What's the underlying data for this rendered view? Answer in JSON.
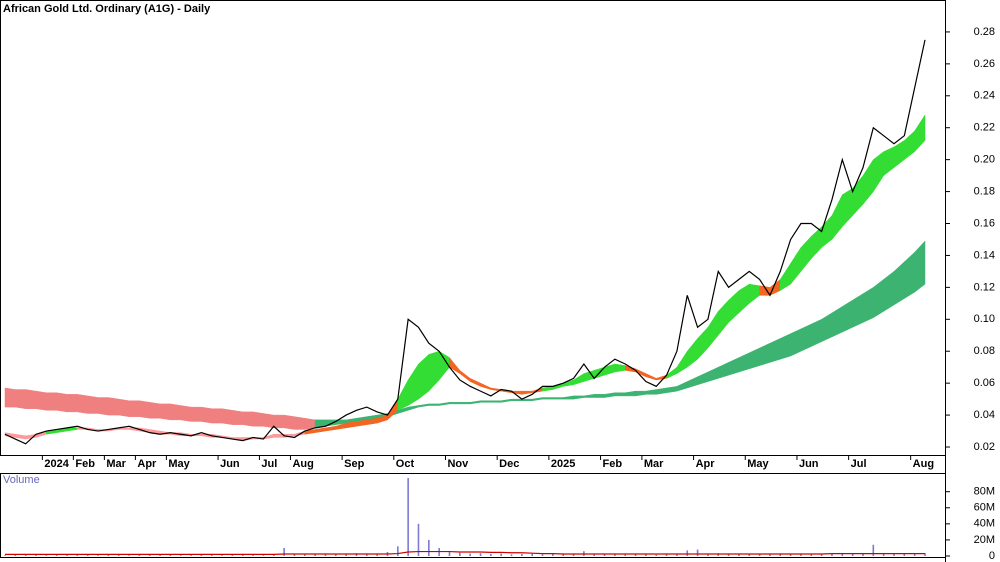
{
  "chart_data": [
    {
      "type": "line",
      "title": "African Gold Ltd. Ordinary (A1G) - Daily",
      "categories": [
        null,
        null,
        null,
        null,
        "2024",
        null,
        null,
        "Feb",
        null,
        null,
        "Mar",
        null,
        null,
        "Apr",
        null,
        null,
        "May",
        null,
        null,
        null,
        null,
        "Jun",
        null,
        null,
        null,
        "Jul",
        null,
        null,
        "Aug",
        null,
        null,
        null,
        null,
        "Sep",
        null,
        null,
        null,
        null,
        "Oct",
        null,
        null,
        null,
        null,
        "Nov",
        null,
        null,
        null,
        null,
        "Dec",
        null,
        null,
        null,
        null,
        "2025",
        null,
        null,
        null,
        null,
        "Feb",
        null,
        null,
        null,
        "Mar",
        null,
        null,
        null,
        null,
        "Apr",
        null,
        null,
        null,
        null,
        "May",
        null,
        null,
        null,
        null,
        "Jun",
        null,
        null,
        null,
        null,
        "Jul",
        null,
        null,
        null,
        null,
        null,
        "Aug",
        null
      ],
      "series": [
        {
          "color": "#000000",
          "values": [
            0.028,
            0.025,
            0.022,
            0.028,
            0.03,
            0.031,
            0.032,
            0.033,
            0.031,
            0.03,
            0.031,
            0.032,
            0.033,
            0.031,
            0.029,
            0.028,
            0.029,
            0.028,
            0.027,
            0.029,
            0.027,
            0.026,
            0.025,
            0.024,
            0.026,
            0.025,
            0.033,
            0.027,
            0.026,
            0.03,
            0.032,
            0.033,
            0.036,
            0.04,
            0.043,
            0.045,
            0.042,
            0.04,
            0.05,
            0.1,
            0.095,
            0.085,
            0.08,
            0.07,
            0.062,
            0.058,
            0.055,
            0.052,
            0.056,
            0.055,
            0.05,
            0.053,
            0.058,
            0.058,
            0.06,
            0.063,
            0.072,
            0.063,
            0.07,
            0.075,
            0.072,
            0.068,
            0.061,
            0.058,
            0.065,
            0.08,
            0.115,
            0.095,
            0.1,
            0.13,
            0.12,
            0.125,
            0.13,
            0.125,
            0.115,
            0.13,
            0.15,
            0.16,
            0.16,
            0.155,
            0.175,
            0.2,
            0.18,
            0.195,
            0.22,
            0.215,
            0.21,
            0.215,
            0.245,
            0.275
          ]
        }
      ],
      "bands": [
        {
          "upper": [
            0.057,
            0.056,
            0.056,
            0.055,
            0.054,
            0.054,
            0.053,
            0.053,
            0.052,
            0.051,
            0.051,
            0.05,
            0.049,
            0.049,
            0.048,
            0.047,
            0.047,
            0.046,
            0.045,
            0.045,
            0.044,
            0.044,
            0.043,
            0.042,
            0.042,
            0.041,
            0.04,
            0.04,
            0.039,
            0.038,
            0.037,
            0.037,
            0.037,
            0.037,
            0.038,
            0.039,
            0.04,
            0.041,
            0.043,
            0.045,
            0.046,
            0.047,
            0.047,
            0.048,
            0.048,
            0.048,
            0.049,
            0.049,
            0.049,
            0.05,
            0.05,
            0.05,
            0.051,
            0.051,
            0.051,
            0.052,
            0.052,
            0.053,
            0.053,
            0.054,
            0.054,
            0.055,
            0.055,
            0.056,
            0.057,
            0.058,
            0.061,
            0.064,
            0.067,
            0.07,
            0.073,
            0.076,
            0.079,
            0.082,
            0.085,
            0.088,
            0.091,
            0.094,
            0.097,
            0.1,
            0.104,
            0.108,
            0.112,
            0.116,
            0.12,
            0.125,
            0.13,
            0.136,
            0.142,
            0.149
          ],
          "lower": [
            0.045,
            0.045,
            0.044,
            0.044,
            0.043,
            0.043,
            0.042,
            0.042,
            0.041,
            0.041,
            0.04,
            0.04,
            0.039,
            0.039,
            0.038,
            0.038,
            0.037,
            0.037,
            0.036,
            0.036,
            0.035,
            0.035,
            0.034,
            0.034,
            0.033,
            0.033,
            0.032,
            0.032,
            0.031,
            0.031,
            0.032,
            0.033,
            0.034,
            0.035,
            0.036,
            0.037,
            0.038,
            0.039,
            0.041,
            0.043,
            0.045,
            0.046,
            0.046,
            0.047,
            0.047,
            0.047,
            0.048,
            0.048,
            0.048,
            0.049,
            0.049,
            0.049,
            0.05,
            0.05,
            0.05,
            0.05,
            0.051,
            0.051,
            0.051,
            0.052,
            0.052,
            0.052,
            0.053,
            0.053,
            0.054,
            0.055,
            0.057,
            0.059,
            0.061,
            0.063,
            0.065,
            0.067,
            0.069,
            0.071,
            0.073,
            0.075,
            0.077,
            0.08,
            0.083,
            0.086,
            0.089,
            0.092,
            0.095,
            0.098,
            0.101,
            0.105,
            0.109,
            0.113,
            0.117,
            0.122
          ],
          "colors": [
            "#f08080",
            "#f08080",
            "#f08080",
            "#f08080",
            "#f08080",
            "#f08080",
            "#f08080",
            "#f08080",
            "#f08080",
            "#f08080",
            "#f08080",
            "#f08080",
            "#f08080",
            "#f08080",
            "#f08080",
            "#f08080",
            "#f08080",
            "#f08080",
            "#f08080",
            "#f08080",
            "#f08080",
            "#f08080",
            "#f08080",
            "#f08080",
            "#f08080",
            "#f08080",
            "#f08080",
            "#f08080",
            "#f08080",
            "#f08080",
            "#3cb371",
            "#3cb371",
            "#3cb371",
            "#3cb371",
            "#3cb371",
            "#3cb371",
            "#3cb371",
            "#3cb371",
            "#3cb371",
            "#3cb371",
            "#3cb371",
            "#3cb371",
            "#3cb371",
            "#3cb371",
            "#3cb371",
            "#3cb371",
            "#3cb371",
            "#3cb371",
            "#3cb371",
            "#3cb371",
            "#3cb371",
            "#3cb371",
            "#3cb371",
            "#3cb371",
            "#3cb371",
            "#3cb371",
            "#3cb371",
            "#3cb371",
            "#3cb371",
            "#3cb371",
            "#3cb371",
            "#3cb371",
            "#3cb371",
            "#3cb371",
            "#3cb371",
            "#3cb371",
            "#3cb371",
            "#3cb371",
            "#3cb371",
            "#3cb371",
            "#3cb371",
            "#3cb371",
            "#3cb371",
            "#3cb371",
            "#3cb371",
            "#3cb371",
            "#3cb371",
            "#3cb371",
            "#3cb371",
            "#3cb371",
            "#3cb371",
            "#3cb371",
            "#3cb371",
            "#3cb371",
            "#3cb371",
            "#3cb371",
            "#3cb371",
            "#3cb371",
            "#3cb371",
            "#3cb371"
          ]
        },
        {
          "upper": [
            0.029,
            0.028,
            0.027,
            0.028,
            0.03,
            0.031,
            0.032,
            0.032,
            0.032,
            0.031,
            0.031,
            0.032,
            0.032,
            0.032,
            0.031,
            0.03,
            0.029,
            0.029,
            0.028,
            0.028,
            0.028,
            0.027,
            0.026,
            0.026,
            0.026,
            0.026,
            0.028,
            0.028,
            0.028,
            0.03,
            0.031,
            0.032,
            0.033,
            0.035,
            0.036,
            0.037,
            0.038,
            0.04,
            0.05,
            0.062,
            0.072,
            0.078,
            0.08,
            0.076,
            0.068,
            0.063,
            0.06,
            0.057,
            0.056,
            0.055,
            0.055,
            0.055,
            0.057,
            0.058,
            0.06,
            0.062,
            0.066,
            0.068,
            0.07,
            0.072,
            0.071,
            0.069,
            0.066,
            0.063,
            0.065,
            0.07,
            0.08,
            0.088,
            0.095,
            0.105,
            0.112,
            0.118,
            0.122,
            0.121,
            0.12,
            0.125,
            0.135,
            0.145,
            0.152,
            0.158,
            0.165,
            0.178,
            0.182,
            0.19,
            0.2,
            0.205,
            0.208,
            0.212,
            0.218,
            0.228
          ],
          "lower": [
            0.027,
            0.026,
            0.025,
            0.026,
            0.028,
            0.029,
            0.03,
            0.031,
            0.031,
            0.03,
            0.03,
            0.031,
            0.031,
            0.03,
            0.029,
            0.028,
            0.028,
            0.027,
            0.027,
            0.027,
            0.026,
            0.026,
            0.025,
            0.024,
            0.025,
            0.025,
            0.026,
            0.026,
            0.027,
            0.028,
            0.029,
            0.03,
            0.031,
            0.032,
            0.033,
            0.034,
            0.035,
            0.037,
            0.043,
            0.046,
            0.05,
            0.055,
            0.062,
            0.07,
            0.066,
            0.061,
            0.058,
            0.056,
            0.055,
            0.054,
            0.053,
            0.054,
            0.055,
            0.056,
            0.058,
            0.059,
            0.061,
            0.063,
            0.065,
            0.067,
            0.068,
            0.067,
            0.064,
            0.062,
            0.063,
            0.066,
            0.07,
            0.075,
            0.082,
            0.09,
            0.098,
            0.104,
            0.11,
            0.115,
            0.115,
            0.118,
            0.122,
            0.13,
            0.138,
            0.145,
            0.15,
            0.158,
            0.165,
            0.172,
            0.18,
            0.19,
            0.195,
            0.2,
            0.205,
            0.212
          ],
          "colors": [
            "#ff9999",
            "#ff9999",
            "#ff9999",
            "#ff9999",
            "#33dd33",
            "#33dd33",
            "#33dd33",
            "#ff9999",
            "#ff9999",
            "#ff9999",
            "#ff9999",
            "#ff9999",
            "#ff9999",
            "#ff9999",
            "#ff9999",
            "#ff9999",
            "#ff9999",
            "#ff9999",
            "#ff9999",
            "#ff9999",
            "#ff9999",
            "#ff9999",
            "#ff9999",
            "#ff9999",
            "#ff9999",
            "#ff9999",
            "#ff9999",
            "#ff9999",
            "#ff9999",
            "#f26522",
            "#f26522",
            "#f26522",
            "#f26522",
            "#f26522",
            "#f26522",
            "#f26522",
            "#f26522",
            "#f26522",
            "#33dd33",
            "#33dd33",
            "#33dd33",
            "#33dd33",
            "#33dd33",
            "#f26522",
            "#f26522",
            "#f26522",
            "#f26522",
            "#f26522",
            "#f26522",
            "#f26522",
            "#f26522",
            "#f26522",
            "#33dd33",
            "#33dd33",
            "#33dd33",
            "#33dd33",
            "#33dd33",
            "#33dd33",
            "#33dd33",
            "#33dd33",
            "#f26522",
            "#f26522",
            "#f26522",
            "#f26522",
            "#33dd33",
            "#33dd33",
            "#33dd33",
            "#33dd33",
            "#33dd33",
            "#33dd33",
            "#33dd33",
            "#33dd33",
            "#33dd33",
            "#f26522",
            "#f26522",
            "#33dd33",
            "#33dd33",
            "#33dd33",
            "#33dd33",
            "#33dd33",
            "#33dd33",
            "#33dd33",
            "#33dd33",
            "#33dd33",
            "#33dd33",
            "#33dd33",
            "#33dd33",
            "#33dd33",
            "#33dd33",
            "#33dd33"
          ]
        }
      ],
      "ylim": [
        0.015,
        0.3
      ],
      "yticks": [
        0.02,
        0.04,
        0.06,
        0.08,
        {
          "value": 0.1,
          "label": "0.10"
        },
        0.12,
        0.14,
        0.16,
        0.18,
        {
          "value": 0.2,
          "label": "0.20"
        },
        0.22,
        0.24,
        0.26,
        0.28
      ]
    },
    {
      "type": "bar",
      "title": "Volume",
      "series": [
        {
          "color": "#7b7bd6",
          "values": [
            1000000,
            1500000,
            1200000,
            2000000,
            1000000,
            1300000,
            1500000,
            2500000,
            1200000,
            1000000,
            1400000,
            1600000,
            1000000,
            2000000,
            1500000,
            1200000,
            1300000,
            1000000,
            1100000,
            1500000,
            1200000,
            1000000,
            1300000,
            1400000,
            1200000,
            1000000,
            1500000,
            10000000,
            2000000,
            1800000,
            2200000,
            3000000,
            2500000,
            2000000,
            3500000,
            2800000,
            2000000,
            5000000,
            12000000,
            97000000,
            40000000,
            20000000,
            10000000,
            6000000,
            4000000,
            3000000,
            3500000,
            2500000,
            3000000,
            2000000,
            2500000,
            3000000,
            2000000,
            2500000,
            3000000,
            2000000,
            6000000,
            2000000,
            2500000,
            2000000,
            1800000,
            2200000,
            2000000,
            1500000,
            2000000,
            3000000,
            7000000,
            8000000,
            3000000,
            3500000,
            2500000,
            3000000,
            2800000,
            2500000,
            3000000,
            3200000,
            2500000,
            2800000,
            3000000,
            2500000,
            3000000,
            3500000,
            2800000,
            3000000,
            14000000,
            3500000,
            3000000,
            2500000,
            3000000,
            3500000
          ]
        },
        {
          "type": "line",
          "color": "#d00000",
          "values": [
            2000000,
            2000000,
            2000000,
            2000000,
            2000000,
            2000000,
            2000000,
            2000000,
            2000000,
            2000000,
            2000000,
            2000000,
            2000000,
            2000000,
            2000000,
            2000000,
            2000000,
            2000000,
            2000000,
            2000000,
            2000000,
            2000000,
            2000000,
            2000000,
            2000000,
            2000000,
            2000000,
            2500000,
            2500000,
            2500000,
            2500000,
            2500000,
            2500000,
            2500000,
            2500000,
            2500000,
            2500000,
            2500000,
            3000000,
            5000000,
            5500000,
            5500000,
            5500000,
            5500000,
            5000000,
            5000000,
            5000000,
            4500000,
            4500000,
            4000000,
            4000000,
            3500000,
            3000000,
            3000000,
            2500000,
            2500000,
            2500000,
            2500000,
            2500000,
            2500000,
            2500000,
            2500000,
            2500000,
            2500000,
            2500000,
            2500000,
            2500000,
            2500000,
            2500000,
            2500000,
            2500000,
            2500000,
            2500000,
            2500000,
            2500000,
            2500000,
            2500000,
            2500000,
            2500000,
            2500000,
            3000000,
            3000000,
            3000000,
            3000000,
            3000000,
            3000000,
            3000000,
            3000000,
            3000000,
            3000000
          ]
        }
      ],
      "ylim": [
        0,
        102000000
      ],
      "yticks": [
        0,
        {
          "value": 20000000,
          "label": "20M"
        },
        {
          "value": 40000000,
          "label": "40M"
        },
        {
          "value": 60000000,
          "label": "60M"
        },
        {
          "value": 80000000,
          "label": "80M"
        }
      ]
    }
  ]
}
